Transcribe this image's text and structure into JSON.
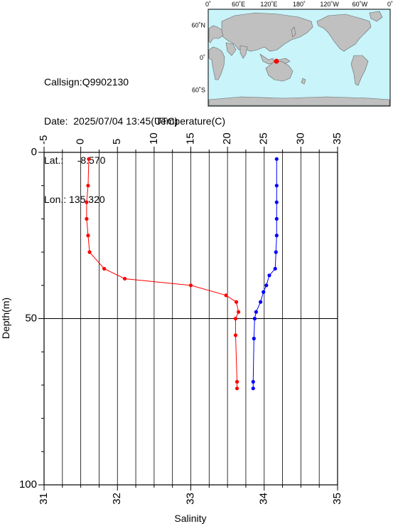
{
  "station": {
    "callsign_label": "Callsign:",
    "callsign": "Q9902130",
    "date_label": "Date:",
    "date": "2025/07/04 13:45(UTC)",
    "lat_label": "Lat.:",
    "lat": "-8.570",
    "lon_label": "Lon.:",
    "lon": "135.320"
  },
  "map": {
    "top_ticks": [
      "0˚",
      "60˚E",
      "120˚E",
      "180˚",
      "120˚W",
      "60˚W",
      "0˚"
    ],
    "left_ticks": [
      "60˚N",
      "0˚",
      "60˚S"
    ],
    "ocean_color": "#c8f4fa",
    "land_color": "#c0c0c0",
    "marker_color": "#ff0000"
  },
  "chart_data": {
    "type": "line",
    "xlabel_top": "Temperature(C)",
    "xlabel_bottom": "Salinity",
    "ylabel": "Depth(m)",
    "temperature_axis": {
      "lim": [
        -5,
        35
      ],
      "ticks": [
        "-5",
        "0",
        "5",
        "10",
        "15",
        "20",
        "25",
        "30",
        "35"
      ]
    },
    "salinity_axis": {
      "lim": [
        31,
        35
      ],
      "ticks": [
        "31",
        "32",
        "33",
        "34",
        "35"
      ]
    },
    "depth_axis": {
      "lim": [
        0,
        100
      ],
      "inverted": true,
      "ticks": [
        "0",
        "50",
        "100"
      ]
    },
    "grid": true,
    "series": [
      {
        "variable": "temperature",
        "color": "#ff0000",
        "points": [
          [
            1.1,
            2
          ],
          [
            1.0,
            10
          ],
          [
            0.8,
            15
          ],
          [
            0.8,
            20
          ],
          [
            1.0,
            25
          ],
          [
            1.2,
            30
          ],
          [
            3.2,
            35
          ],
          [
            6.0,
            38
          ],
          [
            15.0,
            40
          ],
          [
            19.8,
            43
          ],
          [
            21.2,
            45
          ],
          [
            21.5,
            48
          ],
          [
            21.1,
            50
          ],
          [
            21.1,
            55
          ],
          [
            21.3,
            69
          ],
          [
            21.3,
            71
          ]
        ]
      },
      {
        "variable": "salinity",
        "color": "#0000ff",
        "points": [
          [
            34.17,
            2
          ],
          [
            34.17,
            10
          ],
          [
            34.17,
            15
          ],
          [
            34.17,
            20
          ],
          [
            34.17,
            25
          ],
          [
            34.16,
            30
          ],
          [
            34.15,
            35
          ],
          [
            34.07,
            37
          ],
          [
            34.03,
            40
          ],
          [
            33.99,
            42
          ],
          [
            33.95,
            45
          ],
          [
            33.89,
            48
          ],
          [
            33.87,
            50
          ],
          [
            33.86,
            56
          ],
          [
            33.85,
            69
          ],
          [
            33.85,
            71
          ]
        ]
      }
    ]
  }
}
